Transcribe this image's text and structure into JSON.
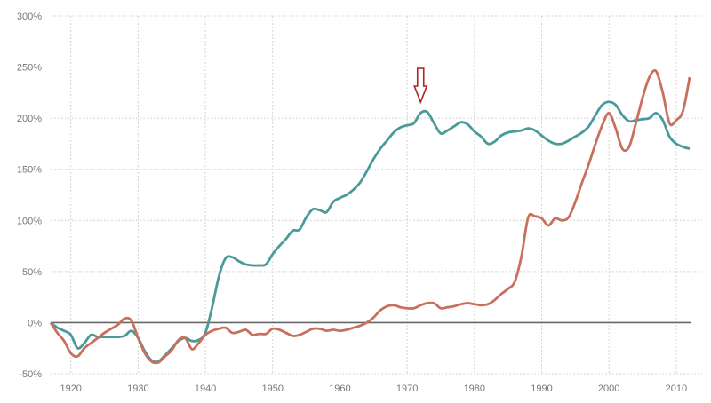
{
  "chart_data": {
    "type": "line",
    "title": "",
    "xlabel": "",
    "ylabel": "",
    "xlim": [
      1917,
      2012
    ],
    "ylim": [
      -50,
      300
    ],
    "grid": true,
    "x_ticks": [
      1920,
      1930,
      1940,
      1950,
      1960,
      1970,
      1980,
      1990,
      2000,
      2010
    ],
    "y_ticks": [
      -50,
      0,
      50,
      100,
      150,
      200,
      250,
      300
    ],
    "y_tick_labels": [
      "-50%",
      "0%",
      "50%",
      "100%",
      "150%",
      "200%",
      "250%",
      "300%"
    ],
    "x_start": 1917,
    "series": [
      {
        "name": "teal",
        "color": "#4b9a9b",
        "values": [
          0,
          -5,
          -8,
          -12,
          -25,
          -20,
          -12,
          -14,
          -14,
          -14,
          -14,
          -13,
          -8,
          -15,
          -28,
          -37,
          -38,
          -32,
          -25,
          -18,
          -15,
          -18,
          -17,
          -10,
          15,
          45,
          63,
          64,
          60,
          57,
          56,
          56,
          57,
          67,
          75,
          82,
          90,
          91,
          103,
          111,
          110,
          108,
          118,
          122,
          125,
          130,
          137,
          148,
          160,
          170,
          178,
          186,
          191,
          193,
          195,
          205,
          206,
          195,
          185,
          188,
          192,
          196,
          194,
          187,
          182,
          175,
          177,
          183,
          186,
          187,
          188,
          190,
          188,
          183,
          178,
          175,
          175,
          178,
          182,
          186,
          192,
          203,
          213,
          216,
          213,
          203,
          197,
          198,
          199,
          200,
          205,
          198,
          182,
          175,
          172,
          170
        ]
      },
      {
        "name": "orange",
        "color": "#c9705d",
        "values": [
          0,
          -10,
          -18,
          -30,
          -33,
          -25,
          -20,
          -15,
          -10,
          -6,
          -2,
          4,
          2,
          -15,
          -30,
          -38,
          -39,
          -33,
          -27,
          -17,
          -15,
          -26,
          -20,
          -12,
          -8,
          -6,
          -5,
          -10,
          -9,
          -7,
          -12,
          -11,
          -11,
          -6,
          -7,
          -10,
          -13,
          -12,
          -9,
          -6,
          -6,
          -8,
          -7,
          -8,
          -7,
          -5,
          -3,
          0,
          5,
          12,
          16,
          17,
          15,
          14,
          14,
          17,
          19,
          19,
          14,
          15,
          16,
          18,
          19,
          18,
          17,
          18,
          22,
          28,
          33,
          40,
          65,
          103,
          104,
          102,
          95,
          102,
          100,
          103,
          118,
          137,
          155,
          175,
          193,
          205,
          190,
          170,
          172,
          195,
          220,
          240,
          246,
          225,
          195,
          198,
          207,
          240
        ]
      }
    ],
    "annotations": [
      {
        "type": "arrow-down",
        "x": 1972,
        "color": "#b22222"
      }
    ]
  }
}
